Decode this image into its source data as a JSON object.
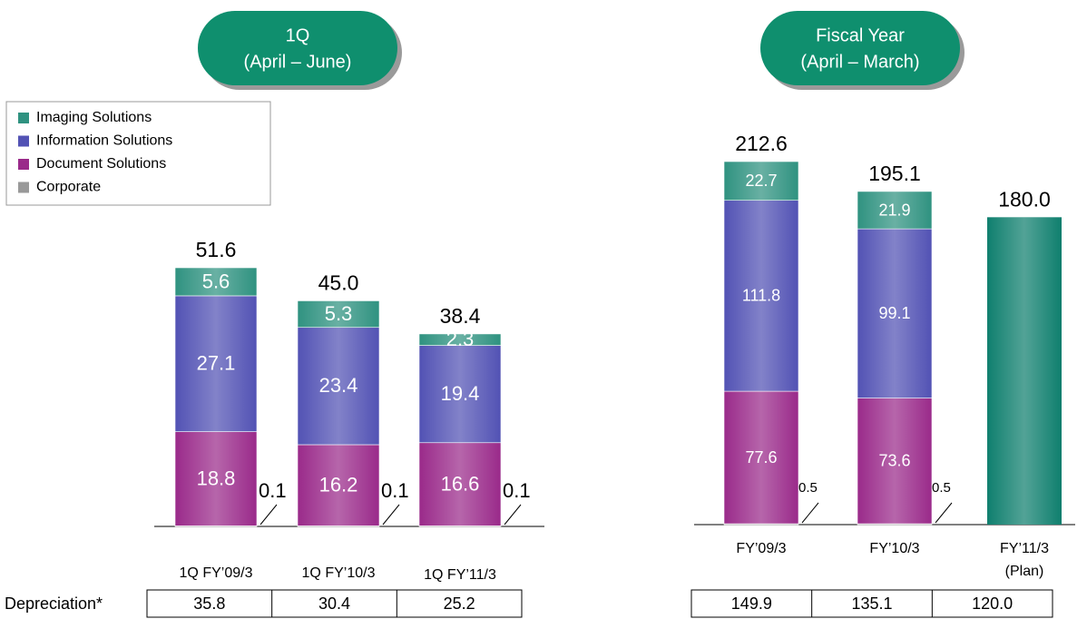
{
  "chart_data": [
    {
      "type": "stacked_bar",
      "title": "1Q",
      "subtitle": "(April – June)",
      "categories": [
        "1Q FY’09/3",
        "1Q FY’10/3",
        "1Q FY’11/3"
      ],
      "series": [
        {
          "name": "Corporate",
          "color": "#999999",
          "values": [
            0.1,
            0.1,
            0.1
          ]
        },
        {
          "name": "Document Solutions",
          "color": "#9a2a8a",
          "values": [
            18.8,
            16.2,
            16.6
          ]
        },
        {
          "name": "Information Solutions",
          "color": "#5252b4",
          "values": [
            27.1,
            23.4,
            19.4
          ]
        },
        {
          "name": "Imaging Solutions",
          "color": "#2f9280",
          "values": [
            5.6,
            5.3,
            2.3
          ]
        }
      ],
      "totals": {
        "values": [
          51.6,
          45.0,
          38.4
        ],
        "value_labels": [
          "51.6",
          "45.0",
          "38.4"
        ]
      },
      "depreciation": {
        "label": "Depreciation*",
        "values": [
          "35.8",
          "30.4",
          "25.2"
        ]
      }
    },
    {
      "type": "stacked_bar",
      "title": "Fiscal Year",
      "subtitle": "(April – March)",
      "categories": [
        "FY’09/3",
        "FY’10/3",
        "FY’11/3"
      ],
      "category_notes": [
        null,
        null,
        "(Plan)"
      ],
      "series": [
        {
          "name": "Corporate",
          "color": "#999999",
          "values": [
            0.5,
            0.5,
            null
          ]
        },
        {
          "name": "Document Solutions",
          "color": "#9a2a8a",
          "values": [
            77.6,
            73.6,
            null
          ]
        },
        {
          "name": "Information Solutions",
          "color": "#5252b4",
          "values": [
            111.8,
            99.1,
            null
          ]
        },
        {
          "name": "Imaging Solutions",
          "color": "#2f9280",
          "values": [
            22.7,
            21.9,
            null
          ]
        }
      ],
      "totals": {
        "values": [
          212.6,
          195.1,
          180.0
        ],
        "value_labels": [
          "212.6",
          "195.1",
          "180.0"
        ],
        "color": "#0f7f6e"
      },
      "depreciation": {
        "values": [
          "149.9",
          "135.1",
          "120.0"
        ]
      }
    }
  ]
}
